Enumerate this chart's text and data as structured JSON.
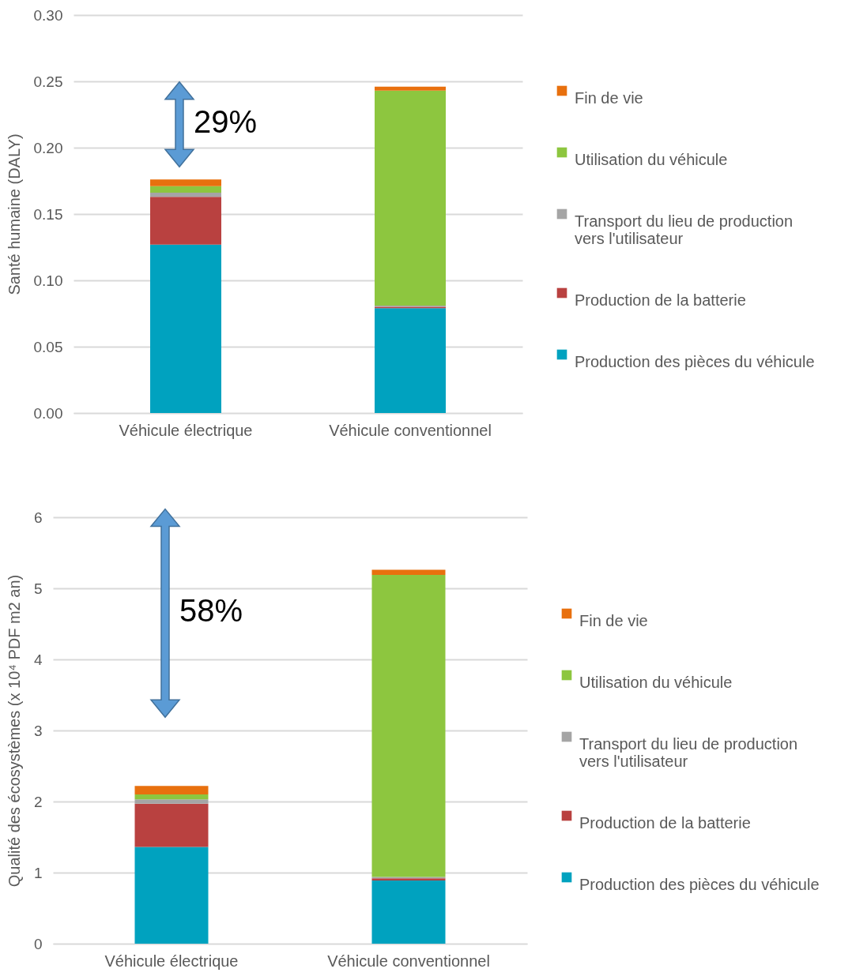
{
  "chart_data": [
    {
      "type": "bar",
      "stacked": true,
      "categories": [
        "Véhicule électrique",
        "Véhicule conventionnel"
      ],
      "ylabel": "Santé humaine (DALY)",
      "ylim": [
        0,
        0.3
      ],
      "yticks": [
        {
          "value": 0,
          "label": "0.00"
        },
        {
          "value": 0.05,
          "label": "0.05"
        },
        {
          "value": 0.1,
          "label": "0.10"
        },
        {
          "value": 0.15,
          "label": "0.15"
        },
        {
          "value": 0.2,
          "label": "0.20"
        },
        {
          "value": 0.25,
          "label": "0.25"
        },
        {
          "value": 0.3,
          "label": "0.30"
        }
      ],
      "grid": "y",
      "legend": "right",
      "series": [
        {
          "name": "Production des pièces du véhicule",
          "color": "#00a2bf",
          "values": [
            0.127,
            0.079
          ]
        },
        {
          "name": "Production de la batterie",
          "color": "#b94140",
          "values": [
            0.036,
            0.001
          ]
        },
        {
          "name": "Transport du lieu de production vers l'utilisateur",
          "color": "#a5a5a5",
          "values": [
            0.003,
            0.001
          ]
        },
        {
          "name": "Utilisation du véhicule",
          "color": "#8dc63f",
          "values": [
            0.005,
            0.162
          ]
        },
        {
          "name": "Fin de vie",
          "color": "#e8700e",
          "values": [
            0.005,
            0.003
          ]
        }
      ],
      "annotations": [
        "29%"
      ]
    },
    {
      "type": "bar",
      "stacked": true,
      "categories": [
        "Véhicule électrique",
        "Véhicule conventionnel"
      ],
      "ylabel": "Qualité des écosystèmes (x 10⁴ PDF m2 an)",
      "ylim": [
        0,
        6
      ],
      "yticks": [
        0,
        1,
        2,
        3,
        4,
        5,
        6
      ],
      "grid": "y",
      "legend": "right",
      "series": [
        {
          "name": "Production des pièces du véhicule",
          "color": "#00a2bf",
          "values": [
            1.36,
            0.89
          ]
        },
        {
          "name": "Production de la batterie",
          "color": "#b94140",
          "values": [
            0.61,
            0.03
          ]
        },
        {
          "name": "Transport du lieu de production vers l'utilisateur",
          "color": "#a5a5a5",
          "values": [
            0.06,
            0.02
          ]
        },
        {
          "name": "Utilisation du véhicule",
          "color": "#8dc63f",
          "values": [
            0.07,
            4.25
          ]
        },
        {
          "name": "Fin de vie",
          "color": "#e8700e",
          "values": [
            0.12,
            0.07
          ]
        }
      ],
      "annotations": [
        "58%"
      ]
    }
  ]
}
